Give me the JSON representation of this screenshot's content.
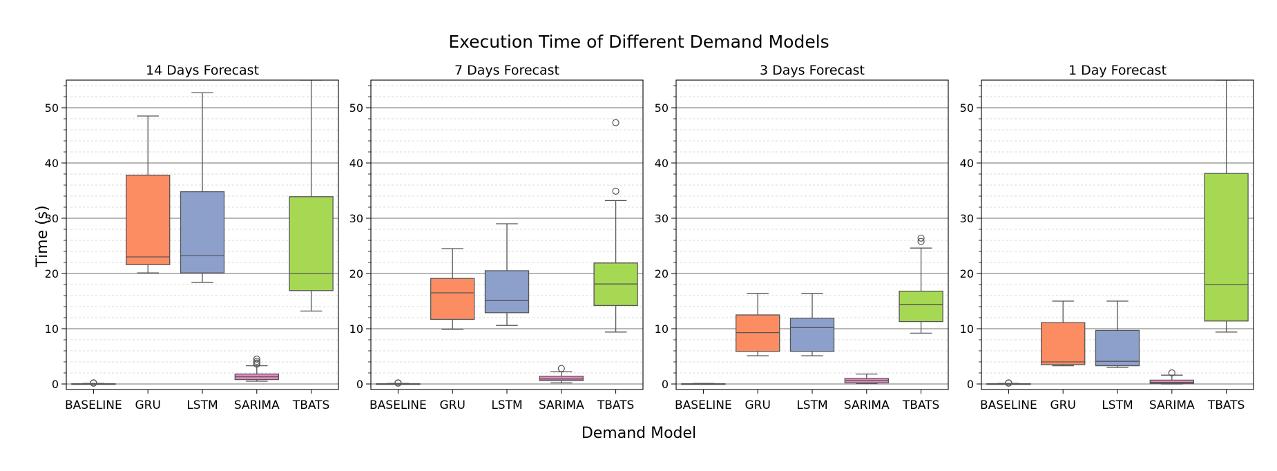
{
  "figure": {
    "title": "Execution Time of Different Demand Models",
    "xlabel": "Demand Model",
    "ylabel": "Time (s)"
  },
  "colors": {
    "BASELINE": "#66c2a5",
    "GRU": "#fc8d62",
    "LSTM": "#8da0cb",
    "SARIMA": "#e78ac3",
    "TBATS": "#a6d854",
    "line": "#555555",
    "grid_major": "#8c8c8c",
    "grid_minor": "#cccccc"
  },
  "chart_data": [
    {
      "type": "box",
      "title": "14 Days Forecast",
      "categories": [
        "BASELINE",
        "GRU",
        "LSTM",
        "SARIMA",
        "TBATS"
      ],
      "ylim": [
        -1,
        55
      ],
      "yticks": [
        0,
        10,
        20,
        30,
        40,
        50
      ],
      "grid": true,
      "boxes": [
        {
          "category": "BASELINE",
          "whisker_low": 0,
          "q1": 0,
          "median": 0,
          "q3": 0.05,
          "whisker_high": 0.1,
          "outliers": [
            0.15,
            0.2
          ]
        },
        {
          "category": "GRU",
          "whisker_low": 20.1,
          "q1": 21.6,
          "median": 23.0,
          "q3": 37.8,
          "whisker_high": 48.5,
          "outliers": []
        },
        {
          "category": "LSTM",
          "whisker_low": 18.4,
          "q1": 20.1,
          "median": 23.2,
          "q3": 34.8,
          "whisker_high": 52.7,
          "outliers": []
        },
        {
          "category": "SARIMA",
          "whisker_low": 0.5,
          "q1": 0.8,
          "median": 1.3,
          "q3": 1.8,
          "whisker_high": 3.3,
          "outliers": [
            3.6,
            3.8,
            4.1,
            4.5
          ]
        },
        {
          "category": "TBATS",
          "whisker_low": 13.2,
          "q1": 16.9,
          "median": 20.0,
          "q3": 33.9,
          "whisker_high": 55,
          "outliers": []
        }
      ]
    },
    {
      "type": "box",
      "title": "7 Days Forecast",
      "categories": [
        "BASELINE",
        "GRU",
        "LSTM",
        "SARIMA",
        "TBATS"
      ],
      "ylim": [
        -1,
        55
      ],
      "yticks": [
        0,
        10,
        20,
        30,
        40,
        50
      ],
      "grid": true,
      "boxes": [
        {
          "category": "BASELINE",
          "whisker_low": 0,
          "q1": 0,
          "median": 0,
          "q3": 0.05,
          "whisker_high": 0.1,
          "outliers": [
            0.15,
            0.2
          ]
        },
        {
          "category": "GRU",
          "whisker_low": 9.9,
          "q1": 11.7,
          "median": 16.5,
          "q3": 19.1,
          "whisker_high": 24.5,
          "outliers": []
        },
        {
          "category": "LSTM",
          "whisker_low": 10.6,
          "q1": 12.9,
          "median": 15.1,
          "q3": 20.5,
          "whisker_high": 29.0,
          "outliers": []
        },
        {
          "category": "SARIMA",
          "whisker_low": 0.2,
          "q1": 0.6,
          "median": 0.9,
          "q3": 1.4,
          "whisker_high": 2.2,
          "outliers": [
            2.8
          ]
        },
        {
          "category": "TBATS",
          "whisker_low": 9.4,
          "q1": 14.2,
          "median": 18.1,
          "q3": 21.9,
          "whisker_high": 33.2,
          "outliers": [
            34.9,
            47.3
          ]
        }
      ]
    },
    {
      "type": "box",
      "title": "3 Days Forecast",
      "categories": [
        "BASELINE",
        "GRU",
        "LSTM",
        "SARIMA",
        "TBATS"
      ],
      "ylim": [
        -1,
        55
      ],
      "yticks": [
        0,
        10,
        20,
        30,
        40,
        50
      ],
      "grid": true,
      "boxes": [
        {
          "category": "BASELINE",
          "whisker_low": 0,
          "q1": 0,
          "median": 0,
          "q3": 0.05,
          "whisker_high": 0.1,
          "outliers": []
        },
        {
          "category": "GRU",
          "whisker_low": 5.1,
          "q1": 5.9,
          "median": 9.3,
          "q3": 12.5,
          "whisker_high": 16.4,
          "outliers": []
        },
        {
          "category": "LSTM",
          "whisker_low": 5.1,
          "q1": 5.9,
          "median": 10.2,
          "q3": 11.9,
          "whisker_high": 16.4,
          "outliers": []
        },
        {
          "category": "SARIMA",
          "whisker_low": 0.1,
          "q1": 0.2,
          "median": 0.6,
          "q3": 1.0,
          "whisker_high": 1.8,
          "outliers": []
        },
        {
          "category": "TBATS",
          "whisker_low": 9.2,
          "q1": 11.3,
          "median": 14.4,
          "q3": 16.8,
          "whisker_high": 24.6,
          "outliers": [
            25.8,
            26.4
          ]
        }
      ]
    },
    {
      "type": "box",
      "title": "1 Day Forecast",
      "categories": [
        "BASELINE",
        "GRU",
        "LSTM",
        "SARIMA",
        "TBATS"
      ],
      "ylim": [
        -1,
        55
      ],
      "yticks": [
        0,
        10,
        20,
        30,
        40,
        50
      ],
      "grid": true,
      "boxes": [
        {
          "category": "BASELINE",
          "whisker_low": 0,
          "q1": 0,
          "median": 0,
          "q3": 0.05,
          "whisker_high": 0.1,
          "outliers": [
            0.15,
            0.2
          ]
        },
        {
          "category": "GRU",
          "whisker_low": 3.3,
          "q1": 3.5,
          "median": 4.0,
          "q3": 11.1,
          "whisker_high": 15.0,
          "outliers": []
        },
        {
          "category": "LSTM",
          "whisker_low": 3.0,
          "q1": 3.3,
          "median": 4.1,
          "q3": 9.7,
          "whisker_high": 15.0,
          "outliers": []
        },
        {
          "category": "SARIMA",
          "whisker_low": 0,
          "q1": 0.1,
          "median": 0.3,
          "q3": 0.7,
          "whisker_high": 1.6,
          "outliers": [
            2.0
          ]
        },
        {
          "category": "TBATS",
          "whisker_low": 9.4,
          "q1": 11.4,
          "median": 18.0,
          "q3": 38.1,
          "whisker_high": 55,
          "outliers": []
        }
      ]
    }
  ]
}
